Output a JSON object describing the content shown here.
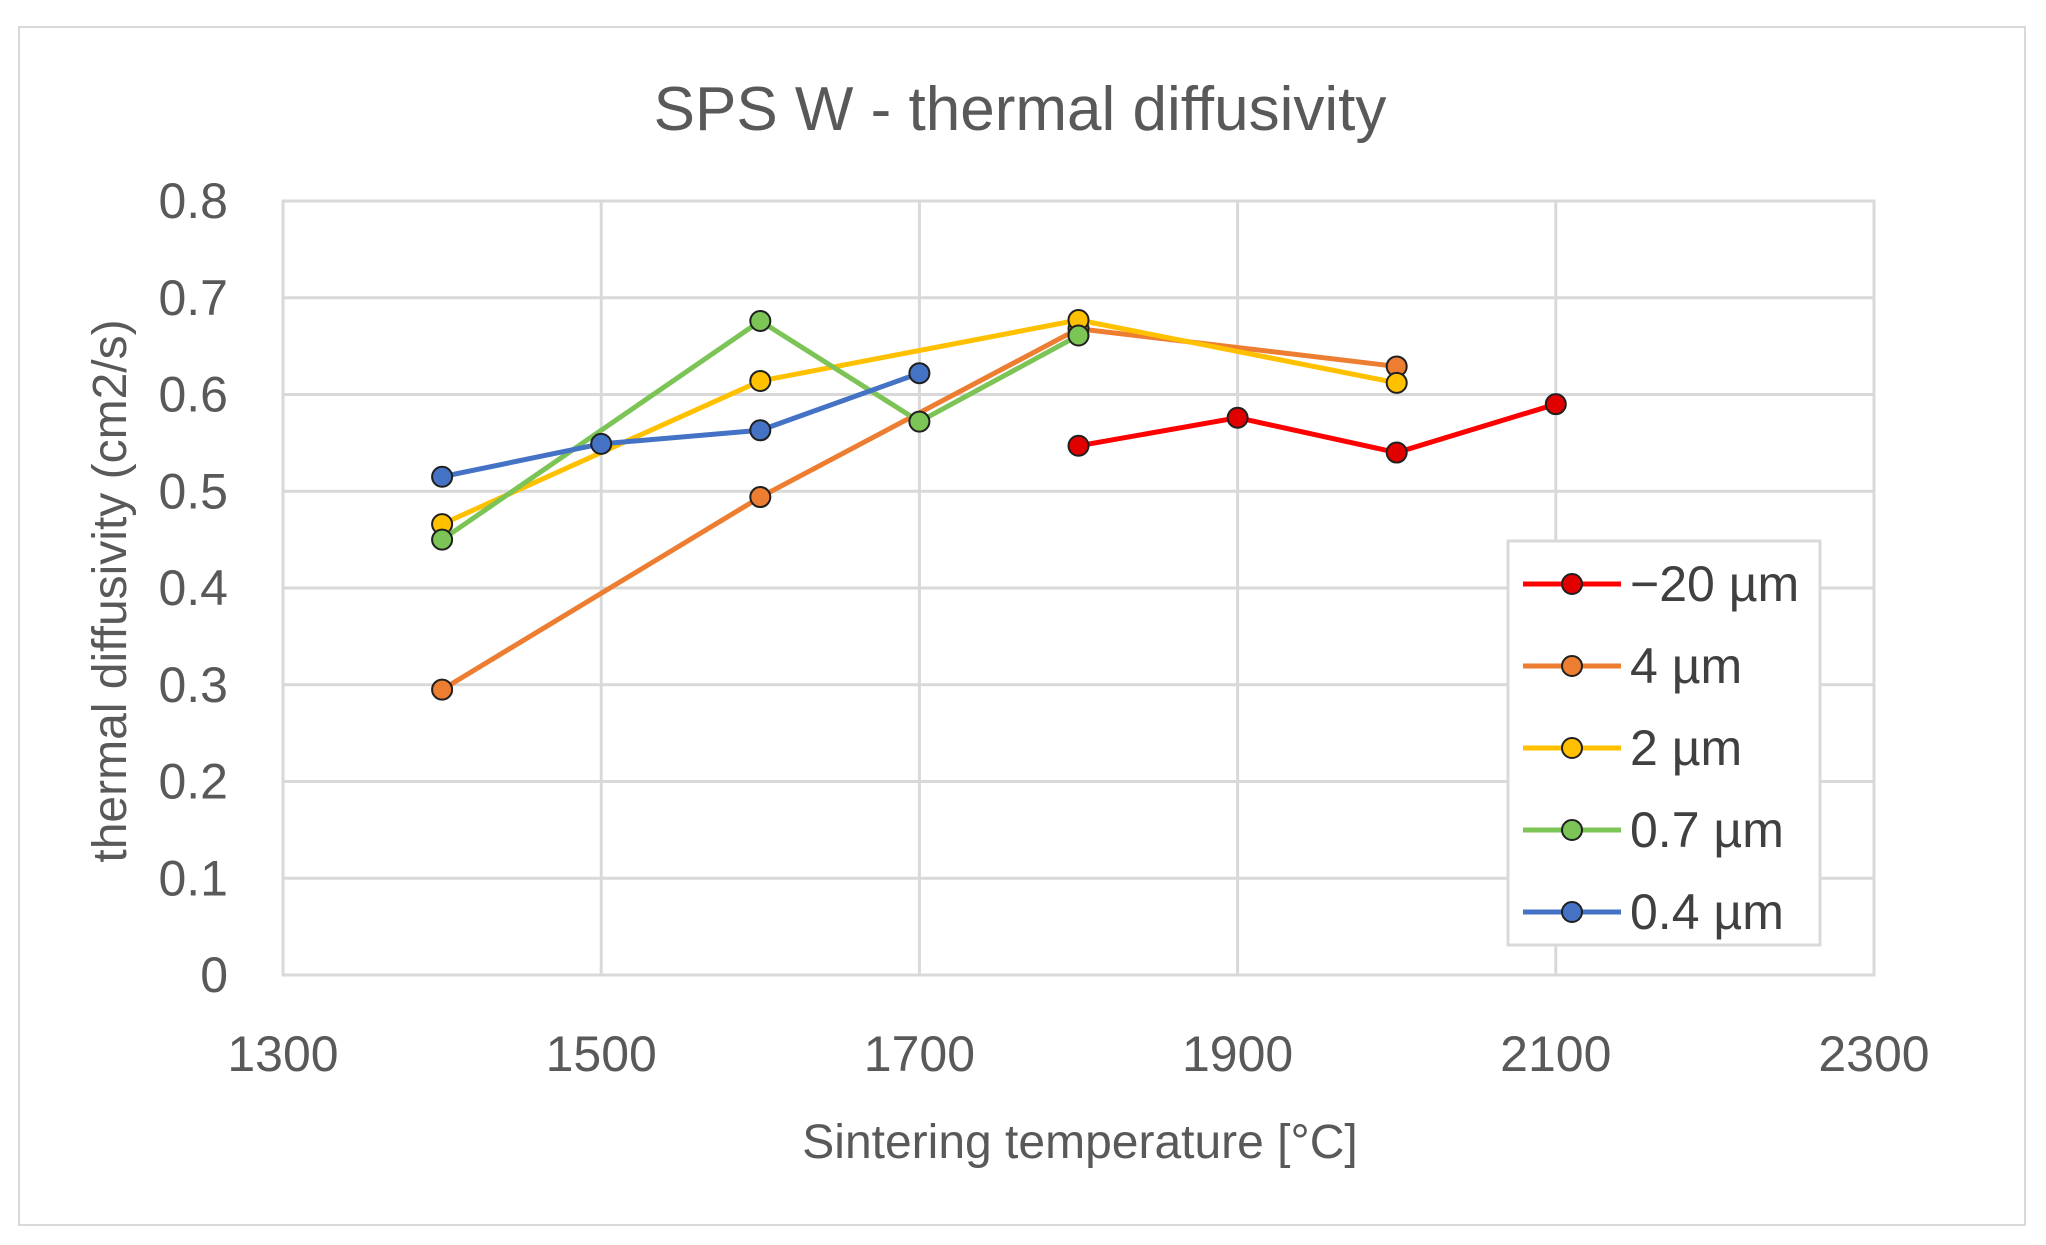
{
  "chart_data": {
    "type": "line",
    "title": "SPS W - thermal diffusivity",
    "xlabel": "Sintering temperature [°C]",
    "ylabel": "thermal diffusivity (cm2/s)",
    "xlim": [
      1300,
      2300
    ],
    "ylim": [
      0,
      0.8
    ],
    "xticks": [
      "1300",
      "1500",
      "1700",
      "1900",
      "2100",
      "2300"
    ],
    "yticks": [
      "0",
      "0.1",
      "0.2",
      "0.3",
      "0.4",
      "0.5",
      "0.6",
      "0.7",
      "0.8"
    ],
    "grid": true,
    "legend": "right",
    "series": [
      {
        "name": "−20 µm",
        "color": "#ff0000",
        "marker": "#e00000",
        "points": [
          [
            1800,
            0.547
          ],
          [
            1900,
            0.576
          ],
          [
            2000,
            0.54
          ],
          [
            2100,
            0.59
          ]
        ]
      },
      {
        "name": "4 µm",
        "color": "#ed7d31",
        "marker": "#ed7d31",
        "points": [
          [
            1400,
            0.295
          ],
          [
            1600,
            0.494
          ],
          [
            1800,
            0.668
          ],
          [
            2000,
            0.629
          ]
        ]
      },
      {
        "name": "2 µm",
        "color": "#ffc000",
        "marker": "#ffc000",
        "points": [
          [
            1400,
            0.466
          ],
          [
            1600,
            0.614
          ],
          [
            1800,
            0.677
          ],
          [
            2000,
            0.612
          ]
        ]
      },
      {
        "name": "0.7 µm",
        "color": "#7cc456",
        "marker": "#7cc456",
        "points": [
          [
            1400,
            0.45
          ],
          [
            1600,
            0.676
          ],
          [
            1700,
            0.572
          ],
          [
            1800,
            0.661
          ]
        ]
      },
      {
        "name": "0.4 µm",
        "color": "#4472c4",
        "marker": "#4472c4",
        "points": [
          [
            1400,
            0.515
          ],
          [
            1500,
            0.549
          ],
          [
            1600,
            0.563
          ],
          [
            1700,
            0.622
          ]
        ]
      }
    ]
  }
}
